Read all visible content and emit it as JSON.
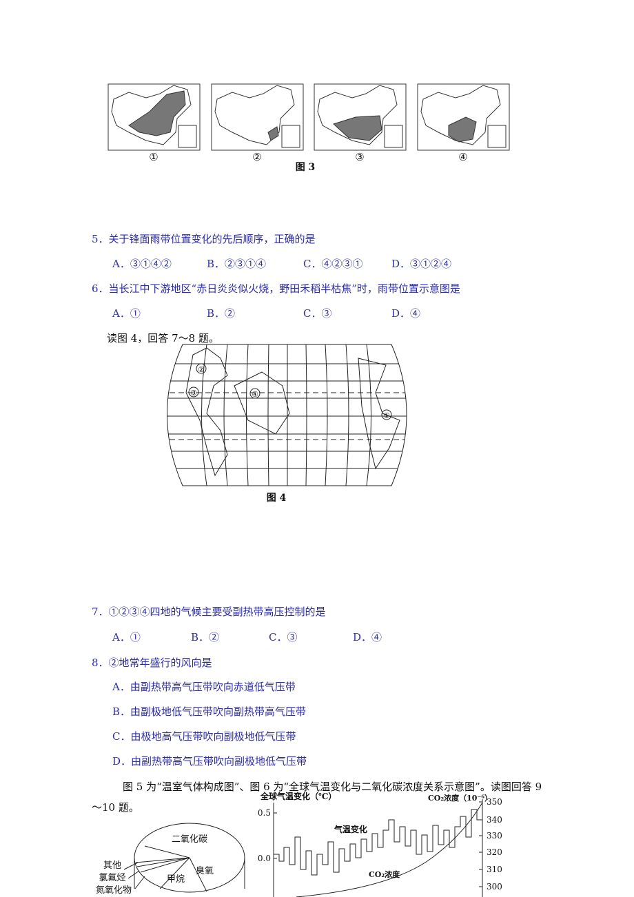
{
  "figure3": {
    "labels": [
      "①",
      "②",
      "③",
      "④"
    ],
    "caption": "图 3"
  },
  "questions": [
    {
      "text": "5．关于锋面雨带位置变化的先后顺序，正确的是",
      "options": [
        "A．③①④②",
        "B．②③①④",
        "C．④②③①",
        "D．③①②④"
      ]
    },
    {
      "text": "6．当长江中下游地区“赤日炎炎似火烧，野田禾稻半枯焦”时，雨带位置示意图是",
      "options": [
        "A．①",
        "B．②",
        "C．③",
        "D．④"
      ]
    },
    {
      "text": "7．①②③④四地的气候主要受副热带高压控制的是",
      "options": [
        "A．①",
        "B．②",
        "C．③",
        "D．④"
      ]
    },
    {
      "text": "8．②地常年盛行的风向是",
      "options": [
        "A．由副热带高气压带吹向赤道低气压带",
        "B．由副极地低气压带吹向副热带高气压带",
        "C．由极地高气压带吹向副极地低气压带",
        "D．由副热带高气压带吹向副极地低气压带"
      ]
    }
  ],
  "intro_7_8": "读图 4，回答 7～8 题。",
  "figure4": {
    "markers": [
      "②",
      "③",
      "④",
      "①"
    ],
    "caption": "图 4"
  },
  "intro_9_10": "图 5 为“温室气体构成图”、图 6 为“全球气温变化与二氧化碳浓度关系示意图”。读图回答 9～10 题。",
  "figure5": {
    "labels": [
      "二氧化碳",
      "其他",
      "氯氟烃",
      "氮氧化物",
      "甲烷",
      "臭氧"
    ]
  },
  "figure6": {
    "left_axis_title": "全球气温变化（℃）",
    "right_axis_title": "CO₂浓度（10⁻⁶）",
    "left_ticks": [
      "0.5",
      "0.0"
    ],
    "right_ticks": [
      "350",
      "340",
      "330",
      "320",
      "310",
      "300"
    ],
    "curve_labels": [
      "气温变化",
      "CO₂浓度"
    ]
  }
}
